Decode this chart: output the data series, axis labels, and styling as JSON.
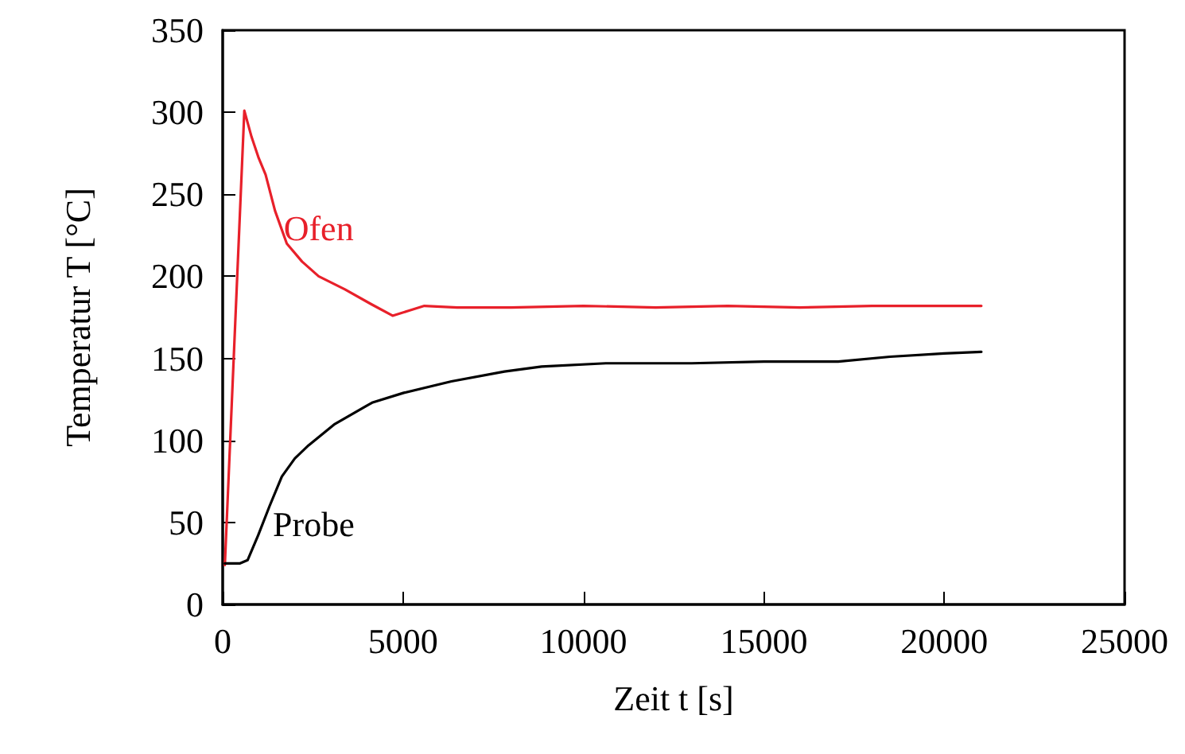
{
  "chart_data": {
    "type": "line",
    "xlabel": "Zeit t [s]",
    "ylabel": "Temperatur T [°C]",
    "xlim": [
      0,
      25000
    ],
    "xticks": [
      0,
      5000,
      10000,
      15000,
      20000,
      25000
    ],
    "ylim": [
      0,
      350
    ],
    "yticks": [
      0,
      50,
      100,
      150,
      200,
      250,
      300,
      350
    ],
    "grid": false,
    "legend": false,
    "marker": "none",
    "line_style": "solid",
    "series": [
      {
        "name": "Ofen",
        "color": "#e8202a",
        "x": [
          60,
          600,
          800,
          1000,
          1190,
          1450,
          1777,
          2200,
          2660,
          3390,
          4120,
          4710,
          5150,
          5590,
          6500,
          8000,
          10000,
          12000,
          14000,
          16000,
          18000,
          20000,
          21030
        ],
        "values": [
          24,
          301,
          285,
          272,
          262,
          240,
          220,
          209,
          200,
          192,
          183,
          176,
          179,
          182,
          181,
          181,
          182,
          181,
          182,
          181,
          182,
          182,
          182
        ]
      },
      {
        "name": "Probe",
        "color": "#000000",
        "x": [
          60,
          470,
          690,
          980,
          1300,
          1640,
          2000,
          2380,
          3110,
          4140,
          5020,
          6340,
          7810,
          8840,
          10620,
          13000,
          15000,
          17060,
          18500,
          20000,
          21030
        ],
        "values": [
          25,
          25,
          27,
          42,
          60,
          78,
          89,
          97,
          110,
          123,
          129,
          136,
          142,
          145,
          147,
          147,
          148,
          148,
          151,
          153,
          154
        ]
      }
    ]
  }
}
